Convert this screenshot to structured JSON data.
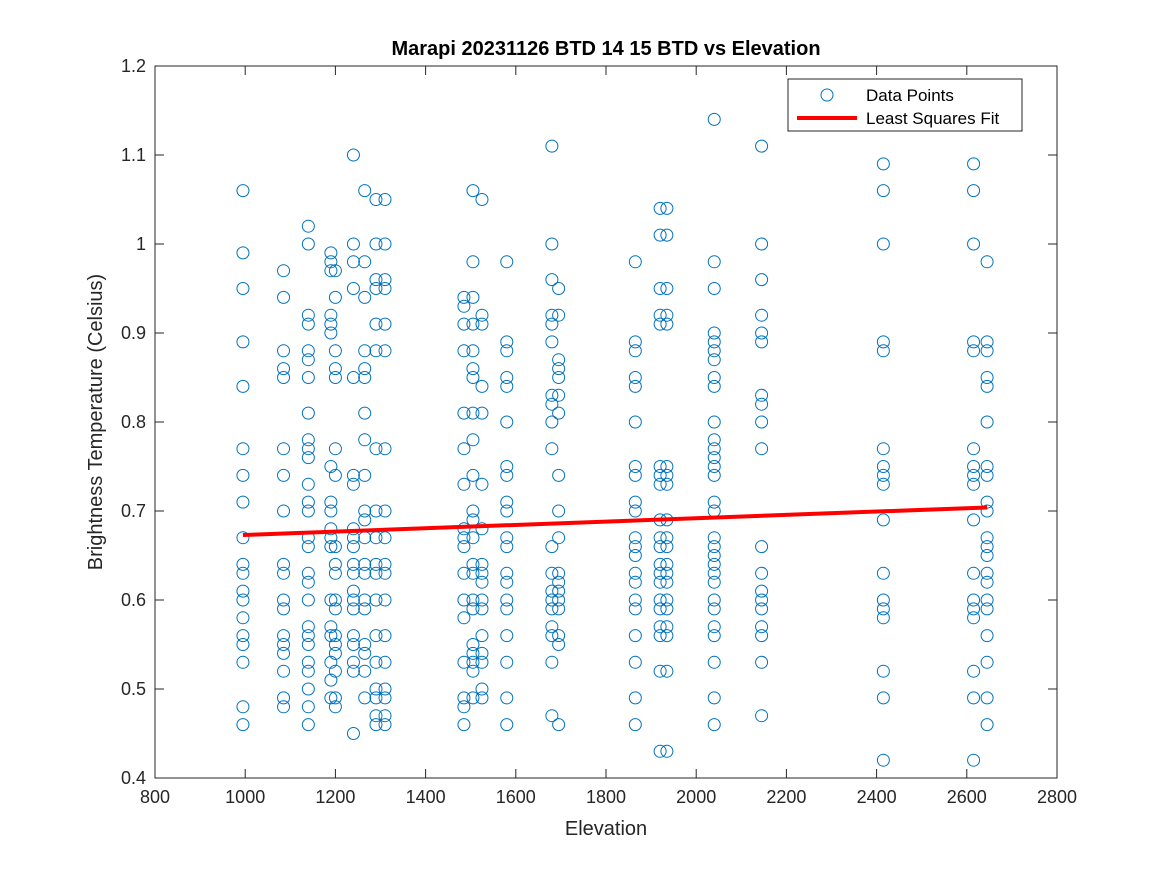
{
  "chart_data": {
    "type": "scatter",
    "title": "Marapi 20231126 BTD 14 15 BTD vs Elevation",
    "xlabel": "Elevation",
    "ylabel": "Brightness Temperature (Celsius)",
    "xlim": [
      800,
      2800
    ],
    "ylim": [
      0.4,
      1.2
    ],
    "xticks": [
      "800",
      "1000",
      "1200",
      "1400",
      "1600",
      "1800",
      "2000",
      "2200",
      "2400",
      "2600",
      "2800"
    ],
    "yticks": [
      "0.4",
      "0.5",
      "0.6",
      "0.7",
      "0.8",
      "0.9",
      "1",
      "1.1",
      "1.2"
    ],
    "grid": false,
    "legend_position": "top-right",
    "colors": {
      "points": "#0072BD",
      "fit": "#FF0000"
    },
    "series": [
      {
        "name": "Data Points",
        "style": "open-circle",
        "groups": [
          {
            "x": 995,
            "y": [
              1.06,
              0.99,
              0.95,
              0.89,
              0.84,
              0.77,
              0.74,
              0.71,
              0.67,
              0.64,
              0.63,
              0.61,
              0.6,
              0.58,
              0.56,
              0.55,
              0.53,
              0.48,
              0.46
            ]
          },
          {
            "x": 1085,
            "y": [
              0.97,
              0.94,
              0.88,
              0.86,
              0.85,
              0.77,
              0.74,
              0.7,
              0.64,
              0.63,
              0.6,
              0.59,
              0.56,
              0.55,
              0.54,
              0.52,
              0.49,
              0.48
            ]
          },
          {
            "x": 1140,
            "y": [
              1.02,
              1.0,
              0.92,
              0.91,
              0.88,
              0.87,
              0.85,
              0.81,
              0.78,
              0.77,
              0.76,
              0.73,
              0.71,
              0.7,
              0.67,
              0.66,
              0.63,
              0.62,
              0.6,
              0.57,
              0.56,
              0.55,
              0.53,
              0.52,
              0.5,
              0.48,
              0.46
            ]
          },
          {
            "x": 1190,
            "y": [
              0.99,
              0.98,
              0.97,
              0.92,
              0.91,
              0.9,
              0.75,
              0.71,
              0.7,
              0.68,
              0.67,
              0.66,
              0.6,
              0.57,
              0.56,
              0.53,
              0.51,
              0.49
            ]
          },
          {
            "x": 1200,
            "y": [
              0.97,
              0.94,
              0.88,
              0.86,
              0.85,
              0.77,
              0.74,
              0.66,
              0.64,
              0.63,
              0.6,
              0.59,
              0.56,
              0.55,
              0.54,
              0.52,
              0.49,
              0.48
            ]
          },
          {
            "x": 1240,
            "y": [
              1.1,
              1.0,
              0.98,
              0.95,
              0.85,
              0.74,
              0.73,
              0.68,
              0.67,
              0.66,
              0.64,
              0.63,
              0.61,
              0.6,
              0.59,
              0.56,
              0.55,
              0.53,
              0.52,
              0.45
            ]
          },
          {
            "x": 1265,
            "y": [
              1.06,
              0.98,
              0.94,
              0.88,
              0.86,
              0.85,
              0.81,
              0.78,
              0.74,
              0.7,
              0.69,
              0.67,
              0.64,
              0.63,
              0.6,
              0.59,
              0.55,
              0.54,
              0.52,
              0.49
            ]
          },
          {
            "x": 1290,
            "y": [
              1.05,
              1.0,
              0.96,
              0.95,
              0.91,
              0.88,
              0.77,
              0.7,
              0.67,
              0.64,
              0.63,
              0.6,
              0.56,
              0.53,
              0.5,
              0.49,
              0.47,
              0.46
            ]
          },
          {
            "x": 1310,
            "y": [
              1.05,
              1.0,
              0.96,
              0.95,
              0.91,
              0.88,
              0.77,
              0.7,
              0.67,
              0.64,
              0.63,
              0.6,
              0.56,
              0.53,
              0.5,
              0.49,
              0.47,
              0.46
            ]
          },
          {
            "x": 1485,
            "y": [
              0.94,
              0.93,
              0.91,
              0.88,
              0.81,
              0.77,
              0.73,
              0.68,
              0.67,
              0.66,
              0.63,
              0.6,
              0.58,
              0.53,
              0.49,
              0.48,
              0.46
            ]
          },
          {
            "x": 1505,
            "y": [
              1.06,
              0.98,
              0.94,
              0.91,
              0.88,
              0.86,
              0.85,
              0.81,
              0.78,
              0.74,
              0.7,
              0.69,
              0.67,
              0.64,
              0.63,
              0.6,
              0.59,
              0.55,
              0.54,
              0.53,
              0.52,
              0.49
            ]
          },
          {
            "x": 1525,
            "y": [
              1.05,
              0.92,
              0.91,
              0.84,
              0.81,
              0.73,
              0.68,
              0.64,
              0.63,
              0.62,
              0.6,
              0.59,
              0.56,
              0.54,
              0.53,
              0.5,
              0.49
            ]
          },
          {
            "x": 1580,
            "y": [
              0.98,
              0.89,
              0.88,
              0.85,
              0.84,
              0.8,
              0.75,
              0.74,
              0.71,
              0.7,
              0.67,
              0.66,
              0.63,
              0.62,
              0.6,
              0.59,
              0.56,
              0.53,
              0.49,
              0.46
            ]
          },
          {
            "x": 1680,
            "y": [
              1.11,
              1.0,
              0.96,
              0.92,
              0.91,
              0.89,
              0.83,
              0.82,
              0.8,
              0.77,
              0.66,
              0.63,
              0.61,
              0.6,
              0.59,
              0.57,
              0.56,
              0.53,
              0.47
            ]
          },
          {
            "x": 1695,
            "y": [
              0.95,
              0.92,
              0.87,
              0.86,
              0.85,
              0.83,
              0.81,
              0.74,
              0.7,
              0.67,
              0.63,
              0.62,
              0.61,
              0.6,
              0.59,
              0.56,
              0.55,
              0.46
            ]
          },
          {
            "x": 1865,
            "y": [
              0.98,
              0.89,
              0.88,
              0.85,
              0.84,
              0.8,
              0.75,
              0.74,
              0.71,
              0.7,
              0.67,
              0.66,
              0.65,
              0.63,
              0.62,
              0.6,
              0.59,
              0.56,
              0.53,
              0.49,
              0.46
            ]
          },
          {
            "x": 1920,
            "y": [
              1.04,
              1.01,
              0.95,
              0.92,
              0.91,
              0.75,
              0.74,
              0.73,
              0.69,
              0.67,
              0.66,
              0.64,
              0.63,
              0.62,
              0.6,
              0.59,
              0.57,
              0.56,
              0.52,
              0.43
            ]
          },
          {
            "x": 1935,
            "y": [
              1.04,
              1.01,
              0.95,
              0.92,
              0.91,
              0.75,
              0.74,
              0.73,
              0.69,
              0.67,
              0.66,
              0.64,
              0.63,
              0.62,
              0.6,
              0.59,
              0.57,
              0.56,
              0.52,
              0.43
            ]
          },
          {
            "x": 2040,
            "y": [
              1.14,
              0.98,
              0.95,
              0.9,
              0.89,
              0.88,
              0.87,
              0.85,
              0.84,
              0.8,
              0.78,
              0.77,
              0.76,
              0.75,
              0.74,
              0.71,
              0.7,
              0.67,
              0.66,
              0.65,
              0.64,
              0.63,
              0.62,
              0.6,
              0.59,
              0.57,
              0.56,
              0.53,
              0.49,
              0.46
            ]
          },
          {
            "x": 2145,
            "y": [
              1.11,
              1.0,
              0.96,
              0.92,
              0.9,
              0.89,
              0.83,
              0.82,
              0.8,
              0.77,
              0.66,
              0.63,
              0.61,
              0.6,
              0.59,
              0.57,
              0.56,
              0.53,
              0.47
            ]
          },
          {
            "x": 2415,
            "y": [
              1.09,
              1.06,
              1.0,
              0.89,
              0.88,
              0.77,
              0.75,
              0.74,
              0.73,
              0.69,
              0.63,
              0.6,
              0.59,
              0.58,
              0.52,
              0.49,
              0.42
            ]
          },
          {
            "x": 2615,
            "y": [
              1.09,
              1.06,
              1.0,
              0.89,
              0.88,
              0.77,
              0.75,
              0.74,
              0.73,
              0.69,
              0.63,
              0.6,
              0.59,
              0.58,
              0.52,
              0.49,
              0.42
            ]
          },
          {
            "x": 2645,
            "y": [
              0.98,
              0.89,
              0.88,
              0.85,
              0.84,
              0.8,
              0.75,
              0.74,
              0.71,
              0.7,
              0.67,
              0.66,
              0.65,
              0.63,
              0.62,
              0.6,
              0.59,
              0.56,
              0.53,
              0.49,
              0.46
            ]
          }
        ]
      },
      {
        "name": "Least Squares Fit",
        "style": "line",
        "x": [
          995,
          2645
        ],
        "y": [
          0.673,
          0.704
        ]
      }
    ]
  }
}
